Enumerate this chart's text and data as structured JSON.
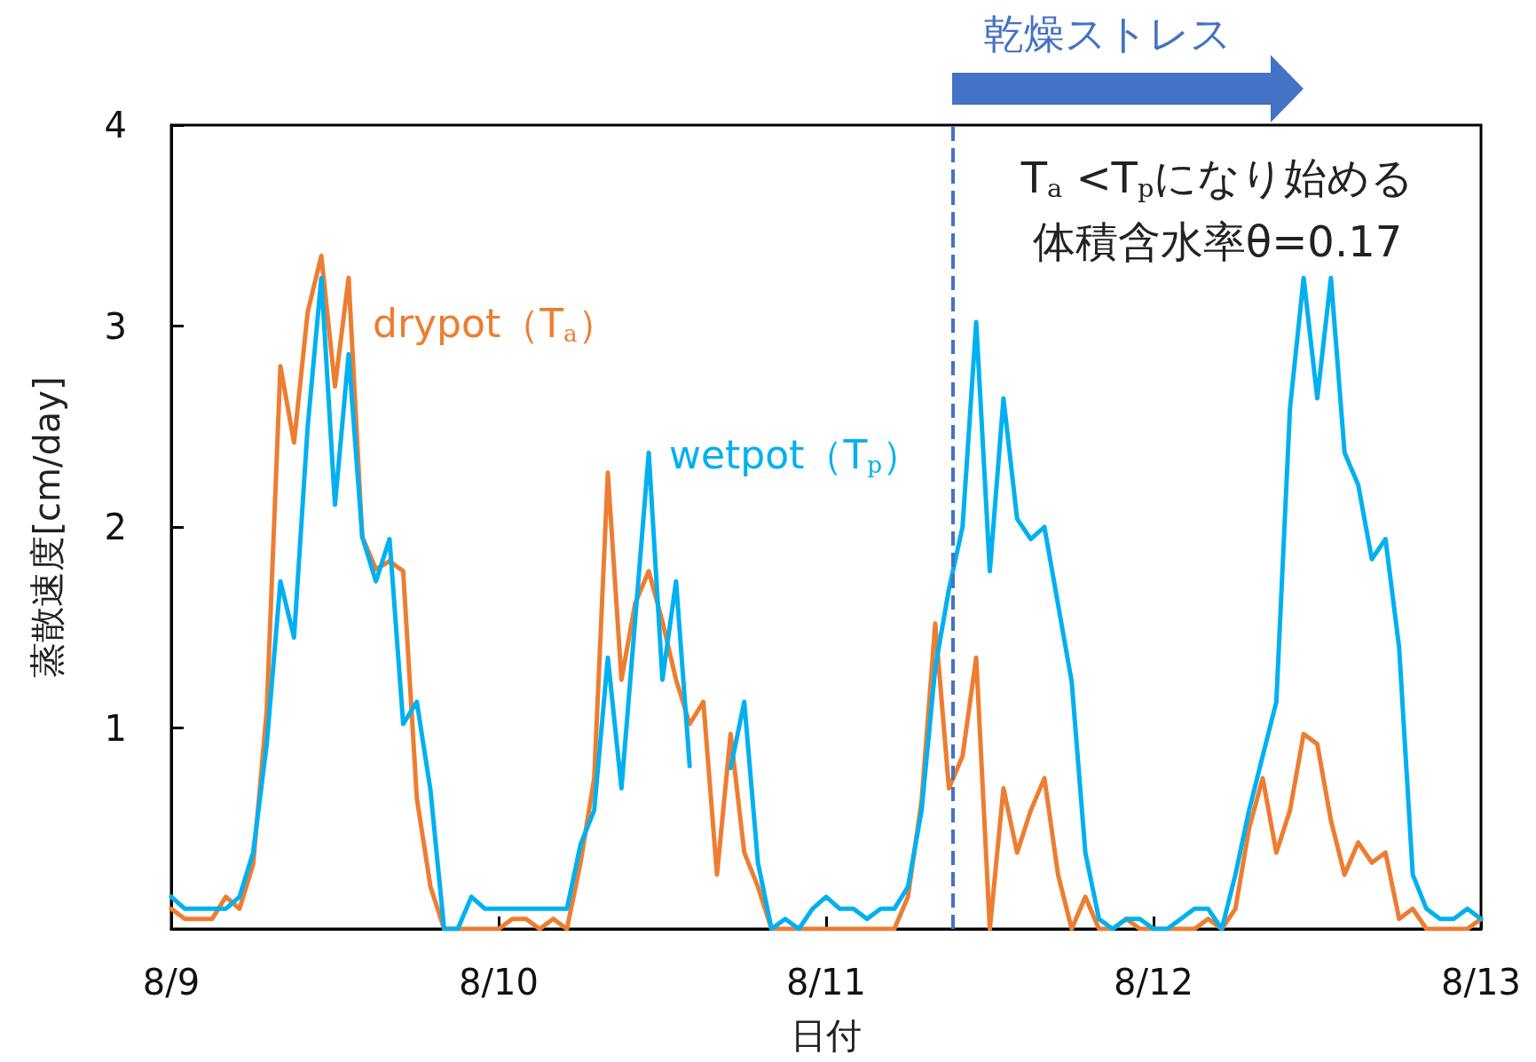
{
  "chart_data": {
    "type": "line",
    "xlabel": "日付",
    "ylabel": "蒸散速度[cm/day]",
    "xlim": [
      "--08-09T00:00",
      "--08-13T00:00"
    ],
    "xticks": [
      {
        "value": "--08-09",
        "label": "8/9"
      },
      {
        "value": "--08-10",
        "label": "8/10"
      },
      {
        "value": "--08-11",
        "label": "8/11"
      },
      {
        "value": "--08-12",
        "label": "8/12"
      },
      {
        "value": "--08-13",
        "label": "8/13"
      }
    ],
    "ylim": [
      0,
      4
    ],
    "yticks": [
      {
        "value": 0,
        "label": null
      },
      1,
      2,
      3,
      4
    ],
    "grid": false,
    "legend": false,
    "marker": "none",
    "line_style": "solid",
    "series": [
      {
        "name": "drypot（T$_{a}$）",
        "color": "#ed7d31",
        "x": [
          "--08-09T00:00",
          "--08-09T01:00",
          "--08-09T02:00",
          "--08-09T03:00",
          "--08-09T04:00",
          "--08-09T05:00",
          "--08-09T06:00",
          "--08-09T07:00",
          "--08-09T08:00",
          "--08-09T09:00",
          "--08-09T10:00",
          "--08-09T11:00",
          "--08-09T12:00",
          "--08-09T13:00",
          "--08-09T14:00",
          "--08-09T15:00",
          "--08-09T16:00",
          "--08-09T17:00",
          "--08-09T18:00",
          "--08-09T19:00",
          "--08-09T20:00",
          "--08-09T21:00",
          "--08-09T22:00",
          "--08-09T23:00",
          "--08-10T00:00",
          "--08-10T01:00",
          "--08-10T02:00",
          "--08-10T03:00",
          "--08-10T04:00",
          "--08-10T05:00",
          "--08-10T06:00",
          "--08-10T07:00",
          "--08-10T08:00",
          "--08-10T09:00",
          "--08-10T10:00",
          "--08-10T11:00",
          "--08-10T12:00",
          "--08-10T13:00",
          "--08-10T14:00",
          "--08-10T15:00",
          "--08-10T16:00",
          "--08-10T17:00",
          "--08-10T18:00",
          "--08-10T19:00",
          "--08-10T20:00",
          "--08-10T21:00",
          "--08-10T22:00",
          "--08-10T23:00",
          "--08-11T00:00",
          "--08-11T01:00",
          "--08-11T02:00",
          "--08-11T03:00",
          "--08-11T04:00",
          "--08-11T05:00",
          "--08-11T06:00",
          "--08-11T07:00",
          "--08-11T08:00",
          "--08-11T09:00",
          "--08-11T10:00",
          "--08-11T11:00",
          "--08-11T12:00",
          "--08-11T13:00",
          "--08-11T14:00",
          "--08-11T15:00",
          "--08-11T16:00",
          "--08-11T17:00",
          "--08-11T18:00",
          "--08-11T19:00",
          "--08-11T20:00",
          "--08-11T21:00",
          "--08-11T22:00",
          "--08-11T23:00",
          "--08-12T00:00",
          "--08-12T01:00",
          "--08-12T02:00",
          "--08-12T03:00",
          "--08-12T04:00",
          "--08-12T05:00",
          "--08-12T06:00",
          "--08-12T07:00",
          "--08-12T08:00",
          "--08-12T09:00",
          "--08-12T10:00",
          "--08-12T11:00",
          "--08-12T12:00",
          "--08-12T13:00",
          "--08-12T14:00",
          "--08-12T15:00",
          "--08-12T16:00",
          "--08-12T17:00",
          "--08-12T18:00",
          "--08-12T19:00",
          "--08-12T20:00",
          "--08-12T21:00",
          "--08-12T22:00",
          "--08-12T23:00",
          "--08-13T00:00"
        ],
        "values": [
          0.1,
          0.05,
          0.05,
          0.05,
          0.16,
          0.1,
          0.32,
          1.09,
          2.8,
          2.42,
          3.07,
          3.35,
          2.7,
          3.24,
          1.95,
          1.79,
          1.83,
          1.78,
          0.65,
          0.21,
          0,
          0,
          0,
          0,
          0,
          0.05,
          0.05,
          0,
          0.05,
          0,
          0.33,
          0.75,
          2.27,
          1.24,
          1.62,
          1.78,
          1.53,
          1.24,
          1.02,
          1.13,
          0.27,
          0.97,
          0.38,
          0.21,
          0,
          0,
          0,
          0,
          0,
          0,
          0,
          0,
          0,
          0,
          0.16,
          0.64,
          1.52,
          0.7,
          0.86,
          1.35,
          0,
          0.7,
          0.38,
          0.59,
          0.75,
          0.27,
          0,
          0.16,
          0,
          0,
          0.05,
          0,
          0,
          0,
          0,
          0,
          0.05,
          0,
          0.1,
          0.5,
          0.75,
          0.38,
          0.59,
          0.97,
          0.92,
          0.54,
          0.27,
          0.43,
          0.33,
          0.38,
          0.05,
          0.1,
          0,
          0,
          0,
          0,
          0.05
        ]
      },
      {
        "name": "wetpot（T$_{p}$）",
        "color": "#00b0f0",
        "x": [
          "--08-09T00:00",
          "--08-09T01:00",
          "--08-09T02:00",
          "--08-09T03:00",
          "--08-09T04:00",
          "--08-09T05:00",
          "--08-09T06:00",
          "--08-09T07:00",
          "--08-09T08:00",
          "--08-09T09:00",
          "--08-09T10:00",
          "--08-09T11:00",
          "--08-09T12:00",
          "--08-09T13:00",
          "--08-09T14:00",
          "--08-09T15:00",
          "--08-09T16:00",
          "--08-09T17:00",
          "--08-09T18:00",
          "--08-09T19:00",
          "--08-09T20:00",
          "--08-09T21:00",
          "--08-09T22:00",
          "--08-09T23:00",
          "--08-10T00:00",
          "--08-10T01:00",
          "--08-10T02:00",
          "--08-10T03:00",
          "--08-10T04:00",
          "--08-10T05:00",
          "--08-10T06:00",
          "--08-10T07:00",
          "--08-10T08:00",
          "--08-10T09:00",
          "--08-10T11:00",
          "--08-10T12:00",
          "--08-10T13:00",
          "--08-10T14:00",
          "--08-10T15:00",
          "--08-10T17:00",
          "--08-10T18:00",
          "--08-10T19:00",
          "--08-10T20:00",
          "--08-10T21:00",
          "--08-10T22:00",
          "--08-10T23:00",
          "--08-11T00:00",
          "--08-11T01:00",
          "--08-11T02:00",
          "--08-11T03:00",
          "--08-11T04:00",
          "--08-11T05:00",
          "--08-11T06:00",
          "--08-11T07:00",
          "--08-11T08:00",
          "--08-11T09:00",
          "--08-11T10:00",
          "--08-11T11:00",
          "--08-11T12:00",
          "--08-11T13:00",
          "--08-11T14:00",
          "--08-11T15:00",
          "--08-11T16:00",
          "--08-11T18:00",
          "--08-11T19:00",
          "--08-11T20:00",
          "--08-11T21:00",
          "--08-11T22:00",
          "--08-11T23:00",
          "--08-12T00:00",
          "--08-12T01:00",
          "--08-12T02:00",
          "--08-12T03:00",
          "--08-12T04:00",
          "--08-12T05:00",
          "--08-12T06:00",
          "--08-12T07:00",
          "--08-12T08:00",
          "--08-12T09:00",
          "--08-12T10:00",
          "--08-12T11:00",
          "--08-12T12:00",
          "--08-12T13:00",
          "--08-12T14:00",
          "--08-12T15:00",
          "--08-12T16:00",
          "--08-12T17:00",
          "--08-12T18:00",
          "--08-12T19:00",
          "--08-12T20:00",
          "--08-12T21:00",
          "--08-12T22:00",
          "--08-12T23:00",
          "--08-13T00:00"
        ],
        "values": [
          0.16,
          0.1,
          0.1,
          0.1,
          0.1,
          0.16,
          0.38,
          0.92,
          1.73,
          1.45,
          2.5,
          3.24,
          2.11,
          2.86,
          1.95,
          1.73,
          1.94,
          1.02,
          1.13,
          0.69,
          0,
          0,
          0.16,
          0.1,
          0.1,
          0.1,
          0.1,
          0.1,
          0.1,
          0.1,
          0.42,
          0.59,
          1.35,
          0.7,
          2.37,
          1.24,
          1.73,
          0.81,
          null,
          0.8,
          1.13,
          0.33,
          0,
          0.05,
          0,
          0.1,
          0.16,
          0.1,
          0.1,
          0.05,
          0.1,
          0.1,
          0.21,
          0.59,
          1.3,
          1.69,
          2.0,
          3.02,
          1.78,
          2.64,
          2.04,
          1.94,
          2.0,
          1.23,
          0.38,
          0.05,
          0,
          0.05,
          0.05,
          0,
          0,
          0.05,
          0.1,
          0.1,
          0,
          0.27,
          0.59,
          0.86,
          1.13,
          2.59,
          3.24,
          2.64,
          3.24,
          2.37,
          2.21,
          1.84,
          1.94,
          1.4,
          0.27,
          0.1,
          0.05,
          0.05,
          0.1,
          0.05
        ]
      }
    ],
    "ref_lines": [
      {
        "axis": "x",
        "value": "--08-11T09:18",
        "label": null,
        "color": "#4472c4",
        "line_style": "dashed"
      }
    ],
    "annotations": [
      "乾燥ストレス",
      "T$_{a}$ <T$_{p}$になり始める",
      "体積含水率θ=0.17"
    ]
  }
}
